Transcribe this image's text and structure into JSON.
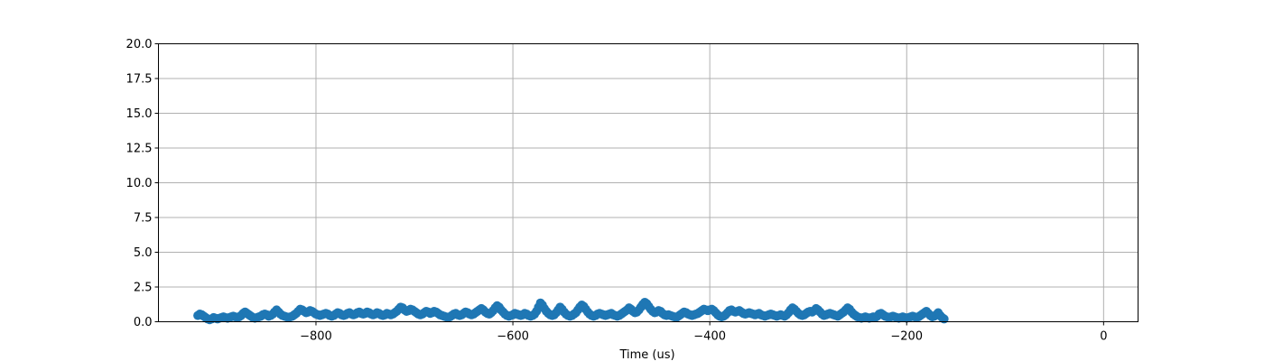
{
  "chart_data": {
    "type": "line",
    "title": "",
    "xlabel": "Time (us)",
    "ylabel": "",
    "xlim": [
      -960,
      35
    ],
    "ylim": [
      0,
      20
    ],
    "xticks": [
      -800,
      -600,
      -400,
      -200,
      0
    ],
    "xtick_labels": [
      "−800",
      "−600",
      "−400",
      "−200",
      "0"
    ],
    "yticks": [
      0,
      2.5,
      5,
      7.5,
      10,
      12.5,
      15,
      17.5,
      20
    ],
    "ytick_labels": [
      "0.0",
      "2.5",
      "5.0",
      "7.5",
      "10.0",
      "12.5",
      "15.0",
      "17.5",
      "20.0"
    ],
    "grid": true,
    "series": [
      {
        "color": "#1f77b4",
        "marker": "circle",
        "x_start": -920,
        "x_step": 2,
        "values": [
          0.45,
          0.55,
          0.5,
          0.4,
          0.3,
          0.2,
          0.15,
          0.2,
          0.3,
          0.25,
          0.2,
          0.25,
          0.3,
          0.35,
          0.3,
          0.25,
          0.3,
          0.35,
          0.4,
          0.35,
          0.3,
          0.35,
          0.45,
          0.6,
          0.7,
          0.6,
          0.5,
          0.4,
          0.3,
          0.25,
          0.3,
          0.35,
          0.4,
          0.5,
          0.55,
          0.5,
          0.4,
          0.45,
          0.55,
          0.7,
          0.85,
          0.7,
          0.55,
          0.45,
          0.4,
          0.35,
          0.3,
          0.35,
          0.4,
          0.5,
          0.6,
          0.75,
          0.9,
          0.85,
          0.75,
          0.65,
          0.7,
          0.8,
          0.75,
          0.65,
          0.55,
          0.5,
          0.45,
          0.5,
          0.55,
          0.6,
          0.55,
          0.45,
          0.4,
          0.45,
          0.55,
          0.65,
          0.6,
          0.5,
          0.45,
          0.5,
          0.6,
          0.65,
          0.55,
          0.5,
          0.55,
          0.65,
          0.7,
          0.6,
          0.55,
          0.6,
          0.7,
          0.65,
          0.55,
          0.5,
          0.55,
          0.65,
          0.6,
          0.5,
          0.45,
          0.5,
          0.6,
          0.55,
          0.5,
          0.55,
          0.65,
          0.75,
          0.9,
          1.05,
          1.0,
          0.85,
          0.75,
          0.8,
          0.9,
          0.85,
          0.75,
          0.65,
          0.55,
          0.5,
          0.55,
          0.65,
          0.75,
          0.7,
          0.6,
          0.65,
          0.75,
          0.7,
          0.6,
          0.5,
          0.45,
          0.4,
          0.35,
          0.3,
          0.35,
          0.45,
          0.55,
          0.6,
          0.5,
          0.45,
          0.5,
          0.6,
          0.7,
          0.65,
          0.55,
          0.5,
          0.55,
          0.65,
          0.75,
          0.85,
          0.95,
          0.85,
          0.7,
          0.6,
          0.55,
          0.65,
          0.8,
          1.0,
          1.15,
          1.05,
          0.85,
          0.7,
          0.55,
          0.45,
          0.4,
          0.45,
          0.5,
          0.6,
          0.55,
          0.5,
          0.45,
          0.5,
          0.6,
          0.55,
          0.45,
          0.4,
          0.45,
          0.55,
          0.75,
          1.05,
          1.35,
          1.2,
          0.95,
          0.75,
          0.6,
          0.5,
          0.45,
          0.5,
          0.65,
          0.85,
          1.05,
          0.9,
          0.7,
          0.55,
          0.45,
          0.4,
          0.45,
          0.55,
          0.65,
          0.85,
          1.05,
          1.2,
          1.1,
          0.9,
          0.7,
          0.55,
          0.45,
          0.4,
          0.45,
          0.55,
          0.6,
          0.55,
          0.5,
          0.45,
          0.5,
          0.55,
          0.6,
          0.5,
          0.45,
          0.4,
          0.45,
          0.55,
          0.65,
          0.75,
          0.85,
          1.0,
          0.9,
          0.75,
          0.65,
          0.7,
          0.85,
          1.05,
          1.25,
          1.4,
          1.3,
          1.1,
          0.9,
          0.75,
          0.65,
          0.7,
          0.8,
          0.75,
          0.6,
          0.5,
          0.45,
          0.5,
          0.45,
          0.4,
          0.35,
          0.3,
          0.4,
          0.5,
          0.6,
          0.7,
          0.65,
          0.55,
          0.5,
          0.45,
          0.5,
          0.55,
          0.6,
          0.7,
          0.8,
          0.9,
          0.85,
          0.8,
          0.85,
          0.9,
          0.8,
          0.65,
          0.5,
          0.4,
          0.35,
          0.4,
          0.5,
          0.65,
          0.8,
          0.85,
          0.75,
          0.7,
          0.75,
          0.8,
          0.7,
          0.6,
          0.55,
          0.6,
          0.65,
          0.6,
          0.55,
          0.5,
          0.55,
          0.6,
          0.5,
          0.45,
          0.4,
          0.45,
          0.5,
          0.55,
          0.5,
          0.45,
          0.4,
          0.45,
          0.5,
          0.45,
          0.4,
          0.5,
          0.65,
          0.85,
          1.0,
          0.9,
          0.75,
          0.6,
          0.5,
          0.45,
          0.5,
          0.6,
          0.7,
          0.75,
          0.7,
          0.8,
          0.95,
          0.85,
          0.7,
          0.55,
          0.45,
          0.5,
          0.55,
          0.6,
          0.55,
          0.5,
          0.45,
          0.4,
          0.5,
          0.6,
          0.7,
          0.85,
          1.0,
          0.9,
          0.7,
          0.55,
          0.45,
          0.35,
          0.3,
          0.25,
          0.3,
          0.35,
          0.3,
          0.25,
          0.3,
          0.35,
          0.3,
          0.4,
          0.55,
          0.6,
          0.5,
          0.4,
          0.35,
          0.3,
          0.35,
          0.4,
          0.35,
          0.3,
          0.25,
          0.3,
          0.35,
          0.3,
          0.25,
          0.3,
          0.35,
          0.4,
          0.35,
          0.3,
          0.35,
          0.45,
          0.55,
          0.65,
          0.75,
          0.6,
          0.45,
          0.35,
          0.4,
          0.5,
          0.65,
          0.45,
          0.3,
          0.2
        ]
      }
    ]
  }
}
